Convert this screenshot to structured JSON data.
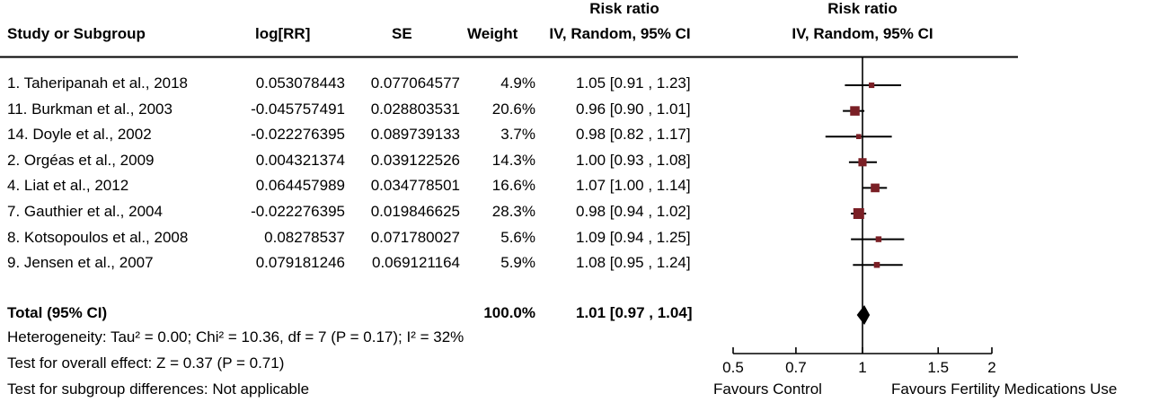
{
  "chart_data": {
    "type": "forest",
    "headers": {
      "study": "Study or Subgroup",
      "logrr": "log[RR]",
      "se": "SE",
      "weight": "Weight",
      "rr_top": "Risk ratio",
      "rr_bottom": "IV, Random, 95% CI",
      "plot_top": "Risk ratio",
      "plot_bottom": "IV, Random, 95% CI"
    },
    "studies": [
      {
        "name": "1. Taheripanah et al., 2018",
        "logrr": "0.053078443",
        "se": "0.077064577",
        "weight": "4.9%",
        "ci": "1.05 [0.91 , 1.23]",
        "rr": 1.05,
        "lo": 0.91,
        "hi": 1.23,
        "w": 4.9
      },
      {
        "name": "11. Burkman et al., 2003",
        "logrr": "-0.045757491",
        "se": "0.028803531",
        "weight": "20.6%",
        "ci": "0.96 [0.90 , 1.01]",
        "rr": 0.96,
        "lo": 0.9,
        "hi": 1.01,
        "w": 20.6
      },
      {
        "name": "14. Doyle et al., 2002",
        "logrr": "-0.022276395",
        "se": "0.089739133",
        "weight": "3.7%",
        "ci": "0.98 [0.82 , 1.17]",
        "rr": 0.98,
        "lo": 0.82,
        "hi": 1.17,
        "w": 3.7
      },
      {
        "name": "2. Orgéas et al., 2009",
        "logrr": "0.004321374",
        "se": "0.039122526",
        "weight": "14.3%",
        "ci": "1.00 [0.93 , 1.08]",
        "rr": 1.0,
        "lo": 0.93,
        "hi": 1.08,
        "w": 14.3
      },
      {
        "name": "4. Liat et al., 2012",
        "logrr": "0.064457989",
        "se": "0.034778501",
        "weight": "16.6%",
        "ci": "1.07 [1.00 , 1.14]",
        "rr": 1.07,
        "lo": 1.0,
        "hi": 1.14,
        "w": 16.6
      },
      {
        "name": "7. Gauthier et al., 2004",
        "logrr": "-0.022276395",
        "se": "0.019846625",
        "weight": "28.3%",
        "ci": "0.98 [0.94 , 1.02]",
        "rr": 0.98,
        "lo": 0.94,
        "hi": 1.02,
        "w": 28.3
      },
      {
        "name": "8. Kotsopoulos et al., 2008",
        "logrr": "0.08278537",
        "se": "0.071780027",
        "weight": "5.6%",
        "ci": "1.09 [0.94 , 1.25]",
        "rr": 1.09,
        "lo": 0.94,
        "hi": 1.25,
        "w": 5.6
      },
      {
        "name": "9. Jensen et al., 2007",
        "logrr": "0.079181246",
        "se": "0.069121164",
        "weight": "5.9%",
        "ci": "1.08 [0.95 , 1.24]",
        "rr": 1.08,
        "lo": 0.95,
        "hi": 1.24,
        "w": 5.9
      }
    ],
    "total": {
      "name": "Total (95% CI)",
      "weight": "100.0%",
      "ci": "1.01 [0.97 , 1.04]",
      "rr": 1.01,
      "lo": 0.97,
      "hi": 1.04
    },
    "heterogeneity": "Heterogeneity: Tau² = 0.00; Chi² = 10.36, df = 7 (P = 0.17); I² = 32%",
    "overall_effect": "Test for overall effect: Z = 0.37 (P = 0.71)",
    "subgroup": "Test for subgroup differences: Not applicable",
    "x_scale": "log",
    "xlim": [
      0.5,
      2
    ],
    "ticks": [
      {
        "value": 0.5,
        "label": "0.5"
      },
      {
        "value": 0.7,
        "label": "0.7"
      },
      {
        "value": 1,
        "label": "1"
      },
      {
        "value": 1.5,
        "label": "1.5"
      },
      {
        "value": 2,
        "label": "2"
      }
    ],
    "favours_left": "Favours Control",
    "favours_right": "Favours Fertility Medications Use",
    "colors": {
      "marker": "#7a1f25",
      "line": "#000000"
    }
  }
}
